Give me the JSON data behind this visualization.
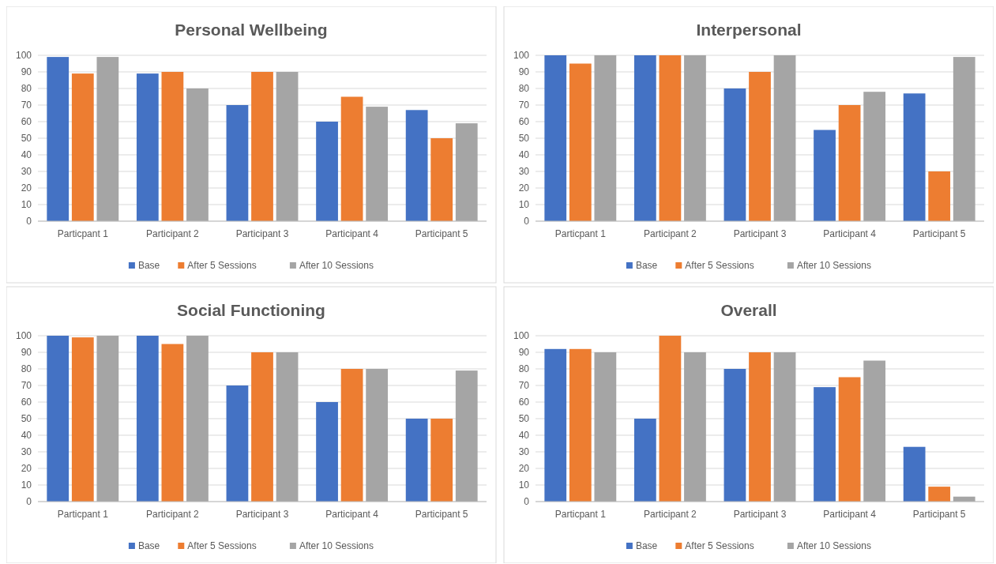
{
  "chart_data": [
    {
      "type": "bar",
      "title": "Personal Wellbeing",
      "categories": [
        "Particpant 1",
        "Participant 2",
        "Participant 3",
        "Participant 4",
        "Participant 5"
      ],
      "series": [
        {
          "name": "Base",
          "color": "#4472c4",
          "values": [
            99,
            89,
            70,
            60,
            67
          ]
        },
        {
          "name": "After 5 Sessions",
          "color": "#ed7d31",
          "values": [
            89,
            90,
            90,
            75,
            50
          ]
        },
        {
          "name": "After 10 Sessions",
          "color": "#a5a5a5",
          "values": [
            99,
            80,
            90,
            69,
            59
          ]
        }
      ],
      "ylim": [
        0,
        100
      ],
      "yticks": [
        0,
        10,
        20,
        30,
        40,
        50,
        60,
        70,
        80,
        90,
        100
      ],
      "grid": "y",
      "legend": "bottom"
    },
    {
      "type": "bar",
      "title": "Interpersonal",
      "categories": [
        "Particpant 1",
        "Participant 2",
        "Participant 3",
        "Participant 4",
        "Participant 5"
      ],
      "series": [
        {
          "name": "Base",
          "color": "#4472c4",
          "values": [
            100,
            100,
            80,
            55,
            77
          ]
        },
        {
          "name": "After 5 Sessions",
          "color": "#ed7d31",
          "values": [
            95,
            100,
            90,
            70,
            30
          ]
        },
        {
          "name": "After 10 Sessions",
          "color": "#a5a5a5",
          "values": [
            100,
            100,
            100,
            78,
            99
          ]
        }
      ],
      "ylim": [
        0,
        100
      ],
      "yticks": [
        0,
        10,
        20,
        30,
        40,
        50,
        60,
        70,
        80,
        90,
        100
      ],
      "grid": "y",
      "legend": "bottom"
    },
    {
      "type": "bar",
      "title": "Social Functioning",
      "categories": [
        "Particpant 1",
        "Participant 2",
        "Participant 3",
        "Participant 4",
        "Participant 5"
      ],
      "series": [
        {
          "name": "Base",
          "color": "#4472c4",
          "values": [
            100,
            100,
            70,
            60,
            50
          ]
        },
        {
          "name": "After 5 Sessions",
          "color": "#ed7d31",
          "values": [
            99,
            95,
            90,
            80,
            50
          ]
        },
        {
          "name": "After 10 Sessions",
          "color": "#a5a5a5",
          "values": [
            100,
            100,
            90,
            80,
            79
          ]
        }
      ],
      "ylim": [
        0,
        100
      ],
      "yticks": [
        0,
        10,
        20,
        30,
        40,
        50,
        60,
        70,
        80,
        90,
        100
      ],
      "grid": "y",
      "legend": "bottom"
    },
    {
      "type": "bar",
      "title": "Overall",
      "categories": [
        "Particpant 1",
        "Participant 2",
        "Participant 3",
        "Participant 4",
        "Participant 5"
      ],
      "series": [
        {
          "name": "Base",
          "color": "#4472c4",
          "values": [
            92,
            50,
            80,
            69,
            33
          ]
        },
        {
          "name": "After 5 Sessions",
          "color": "#ed7d31",
          "values": [
            92,
            100,
            90,
            75,
            9
          ]
        },
        {
          "name": "After 10 Sessions",
          "color": "#a5a5a5",
          "values": [
            90,
            90,
            90,
            85,
            3
          ]
        }
      ],
      "ylim": [
        0,
        100
      ],
      "yticks": [
        0,
        10,
        20,
        30,
        40,
        50,
        60,
        70,
        80,
        90,
        100
      ],
      "grid": "y",
      "legend": "bottom"
    }
  ]
}
